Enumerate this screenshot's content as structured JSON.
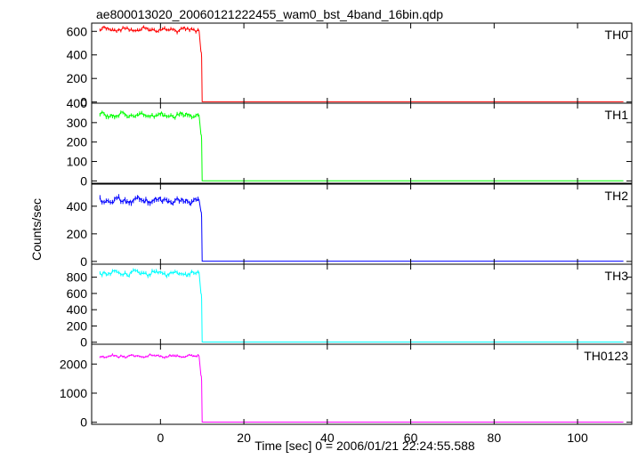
{
  "chart_data": {
    "type": "line",
    "title": "ae800013020_20060121222455_wam0_bst_4band_16bin.qdp",
    "xlabel": "Time [sec] 0 = 2006/01/21 22:24:55.588",
    "ylabel": "Counts/sec",
    "xlim": [
      -16.5,
      113
    ],
    "x_ticks": [
      0,
      20,
      40,
      60,
      80,
      100
    ],
    "x_tick_labels": [
      "0",
      "20",
      "40",
      "60",
      "80",
      "100"
    ],
    "grid": false,
    "drop_time": 9.8,
    "panels": [
      {
        "label": "TH0",
        "color": "#ff0000",
        "ylim": [
          -10,
          670
        ],
        "y_ticks": [
          0,
          200,
          400,
          600
        ],
        "y_tick_labels": [
          "0",
          "200",
          "400",
          "600"
        ],
        "pre_level": 615,
        "pre_noise": 28,
        "decay_level": 420,
        "post_level": 2
      },
      {
        "label": "TH1",
        "color": "#00ff00",
        "ylim": [
          -12,
          400
        ],
        "y_ticks": [
          0,
          100,
          200,
          300,
          400
        ],
        "y_tick_labels": [
          "0",
          "100",
          "200",
          "300",
          "400"
        ],
        "pre_level": 338,
        "pre_noise": 20,
        "decay_level": 235,
        "post_level": 1
      },
      {
        "label": "TH2",
        "color": "#0000ff",
        "ylim": [
          -20,
          560
        ],
        "y_ticks": [
          0,
          200,
          400
        ],
        "y_tick_labels": [
          "0",
          "200",
          "400"
        ],
        "pre_level": 440,
        "pre_noise": 35,
        "decay_level": 355,
        "post_level": 2
      },
      {
        "label": "TH3",
        "color": "#00ffff",
        "ylim": [
          -25,
          960
        ],
        "y_ticks": [
          0,
          200,
          400,
          600,
          800
        ],
        "y_tick_labels": [
          "0",
          "200",
          "400",
          "600",
          "800"
        ],
        "pre_level": 850,
        "pre_noise": 45,
        "decay_level": 590,
        "post_level": 2
      },
      {
        "label": "TH0123",
        "color": "#ff00ff",
        "ylim": [
          -70,
          2680
        ],
        "y_ticks": [
          0,
          1000,
          2000
        ],
        "y_tick_labels": [
          "0",
          "1000",
          "2000"
        ],
        "pre_level": 2270,
        "pre_noise": 70,
        "decay_level": 1580,
        "post_level": 5
      }
    ]
  }
}
